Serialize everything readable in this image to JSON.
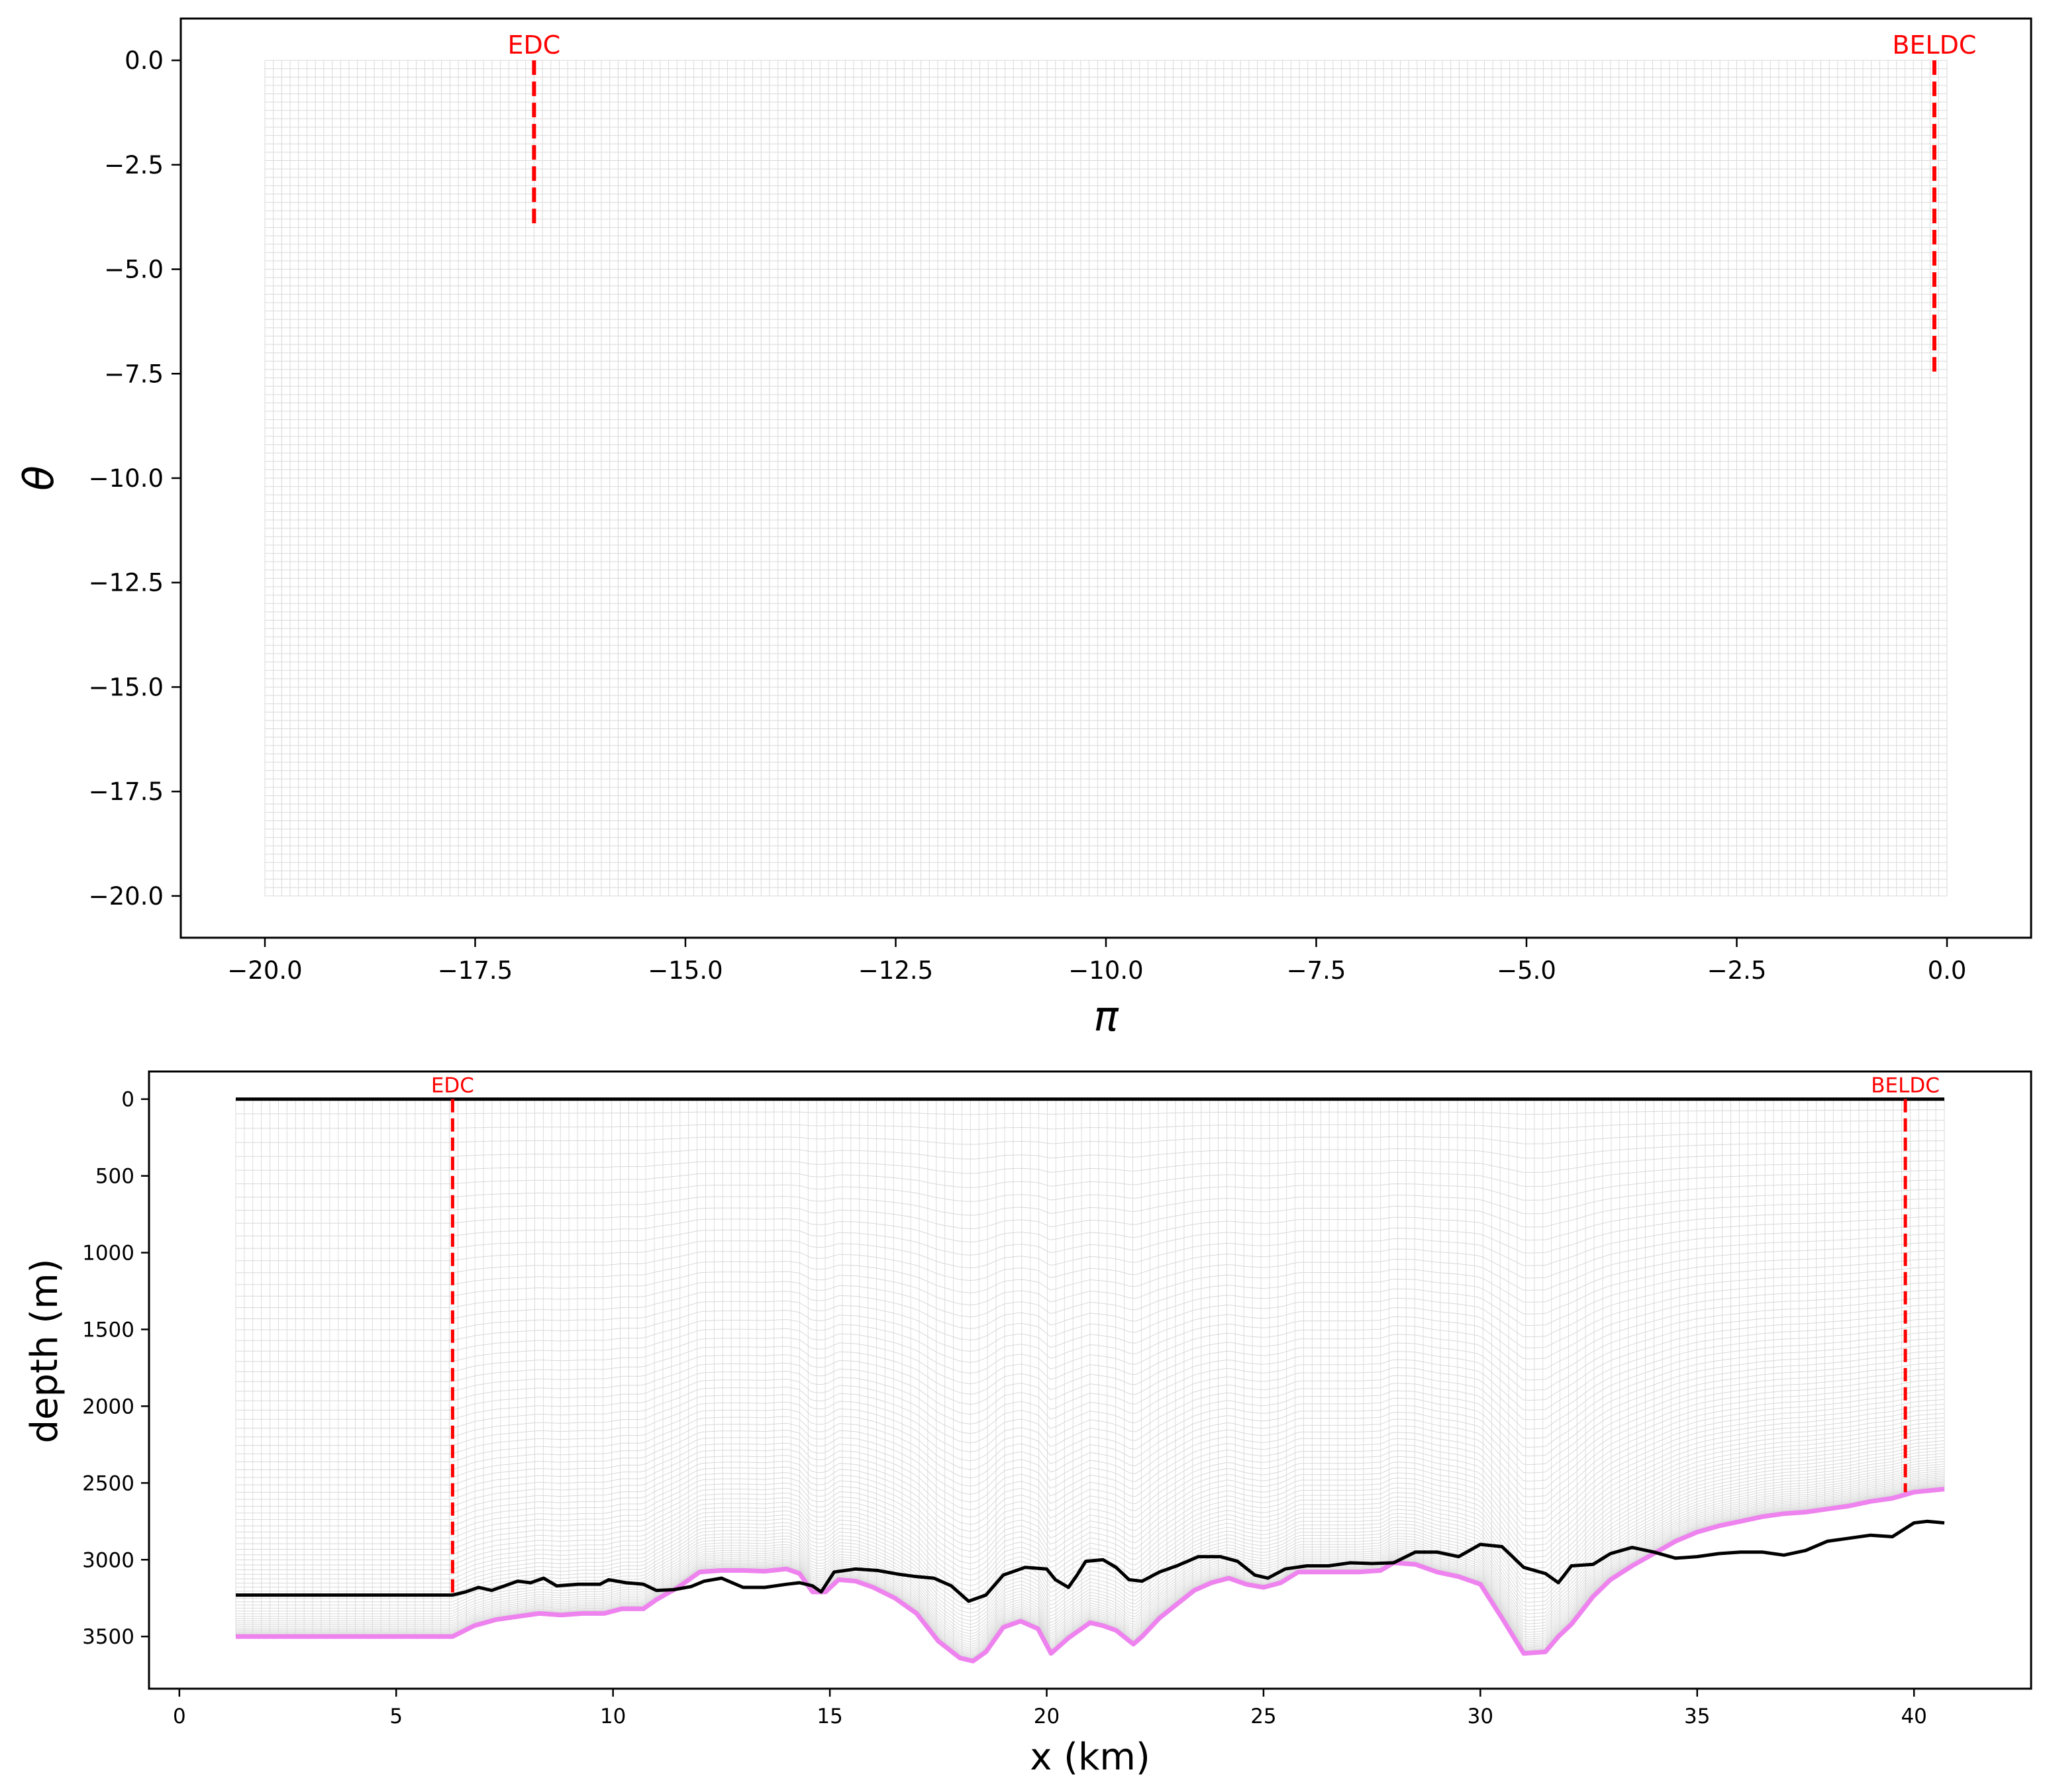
{
  "chart_data": [
    {
      "type": "line",
      "name": "top-panel",
      "xlabel": "π",
      "ylabel": "θ",
      "xlim": [
        -21.0,
        1.0
      ],
      "ylim": [
        -21.0,
        1.0
      ],
      "x_ticks": [
        -20.0,
        -17.5,
        -15.0,
        -12.5,
        -10.0,
        -7.5,
        -5.0,
        -2.5,
        0.0
      ],
      "x_tick_labels": [
        "−20.0",
        "−17.5",
        "−15.0",
        "−12.5",
        "−10.0",
        "−7.5",
        "−5.0",
        "−2.5",
        "0.0"
      ],
      "y_ticks": [
        0.0,
        -2.5,
        -5.0,
        -7.5,
        -10.0,
        -12.5,
        -15.0,
        -17.5,
        -20.0
      ],
      "y_tick_labels": [
        "0.0",
        "−2.5",
        "−5.0",
        "−7.5",
        "−10.0",
        "−12.5",
        "−15.0",
        "−17.5",
        "−20.0"
      ],
      "grid": {
        "x_range": [
          -20.0,
          0.0
        ],
        "y_range": [
          -20.0,
          0.0
        ],
        "color": "#d9d9d9"
      },
      "markers": [
        {
          "label": "EDC",
          "x": -16.8,
          "y_top": 0.0,
          "y_bottom": -4.0,
          "color": "#ff0000"
        },
        {
          "label": "BELDC",
          "x": -0.15,
          "y_top": 0.0,
          "y_bottom": -7.5,
          "color": "#ff0000"
        }
      ]
    },
    {
      "type": "line",
      "name": "bottom-panel",
      "xlabel": "x (km)",
      "ylabel": "depth (m)",
      "xlim": [
        -0.7,
        42.7
      ],
      "ylim": [
        3840,
        -180
      ],
      "x_ticks": [
        0,
        5,
        10,
        15,
        20,
        25,
        30,
        35,
        40
      ],
      "x_tick_labels": [
        "0",
        "5",
        "10",
        "15",
        "20",
        "25",
        "30",
        "35",
        "40"
      ],
      "y_ticks": [
        0,
        500,
        1000,
        1500,
        2000,
        2500,
        3000,
        3500
      ],
      "y_tick_labels": [
        "0",
        "500",
        "1000",
        "1500",
        "2000",
        "2500",
        "3000",
        "3500"
      ],
      "markers": [
        {
          "label": "EDC",
          "x": 6.3,
          "y_top": 0,
          "y_bottom": 3230,
          "color": "#ff0000"
        },
        {
          "label": "BELDC",
          "x": 39.8,
          "y_top": 0,
          "y_bottom": 2560,
          "color": "#ff0000"
        }
      ],
      "series": [
        {
          "role": "surface",
          "color": "#000000",
          "x": [
            1.3,
            40.7
          ],
          "y": [
            0,
            0
          ]
        },
        {
          "role": "black-profile",
          "color": "#000000",
          "x": [
            1.3,
            6.3,
            6.6,
            6.9,
            7.2,
            7.5,
            7.8,
            8.1,
            8.4,
            8.7,
            9.2,
            9.7,
            9.9,
            10.3,
            10.7,
            11.0,
            11.4,
            11.8,
            12.1,
            12.5,
            13.0,
            13.5,
            14.0,
            14.3,
            14.6,
            14.8,
            15.1,
            15.6,
            16.1,
            16.6,
            17.0,
            17.4,
            17.8,
            18.2,
            18.6,
            19.0,
            19.5,
            20.0,
            20.2,
            20.5,
            20.7,
            20.9,
            21.3,
            21.6,
            21.9,
            22.2,
            22.6,
            23.0,
            23.5,
            24.0,
            24.4,
            24.8,
            25.1,
            25.5,
            26.0,
            26.5,
            27.0,
            27.5,
            28.0,
            28.5,
            29.0,
            29.5,
            30.0,
            30.5,
            31.0,
            31.5,
            31.8,
            32.1,
            32.6,
            33.0,
            33.5,
            34.0,
            34.5,
            35.0,
            35.5,
            36.0,
            36.5,
            37.0,
            37.5,
            38.0,
            38.5,
            39.0,
            39.5,
            40.0,
            40.3,
            40.7
          ],
          "y": [
            3230,
            3230,
            3210,
            3180,
            3200,
            3170,
            3140,
            3150,
            3120,
            3170,
            3160,
            3160,
            3130,
            3150,
            3160,
            3200,
            3195,
            3175,
            3140,
            3120,
            3180,
            3180,
            3160,
            3150,
            3170,
            3210,
            3080,
            3060,
            3070,
            3095,
            3110,
            3120,
            3170,
            3270,
            3230,
            3100,
            3050,
            3060,
            3130,
            3180,
            3100,
            3010,
            3000,
            3050,
            3130,
            3140,
            3080,
            3040,
            2980,
            2980,
            3010,
            3100,
            3120,
            3060,
            3040,
            3040,
            3020,
            3025,
            3020,
            2950,
            2950,
            2980,
            2900,
            2915,
            3050,
            3090,
            3150,
            3040,
            3030,
            2960,
            2920,
            2950,
            2990,
            2980,
            2960,
            2950,
            2950,
            2970,
            2940,
            2880,
            2860,
            2840,
            2850,
            2760,
            2750,
            2760
          ]
        },
        {
          "role": "magenta-bed",
          "color": "#ee82ee",
          "x": [
            1.3,
            6.3,
            6.8,
            7.3,
            7.8,
            8.3,
            8.8,
            9.3,
            9.8,
            10.2,
            10.7,
            11.0,
            11.5,
            12.0,
            12.5,
            13.0,
            13.5,
            14.0,
            14.3,
            14.6,
            14.9,
            15.2,
            15.6,
            16.0,
            16.5,
            17.0,
            17.5,
            18.0,
            18.3,
            18.6,
            19.0,
            19.4,
            19.8,
            20.1,
            20.5,
            21.0,
            21.3,
            21.6,
            22.0,
            22.2,
            22.6,
            23.0,
            23.4,
            23.8,
            24.2,
            24.6,
            25.0,
            25.4,
            25.8,
            26.2,
            26.7,
            27.2,
            27.7,
            28.0,
            28.5,
            29.0,
            29.5,
            30.0,
            30.5,
            31.0,
            31.5,
            31.8,
            32.1,
            32.6,
            33.0,
            33.5,
            34.0,
            34.5,
            35.0,
            35.5,
            36.0,
            36.5,
            37.0,
            37.5,
            38.0,
            38.5,
            39.0,
            39.5,
            40.0,
            40.7
          ],
          "y": [
            3500,
            3500,
            3430,
            3390,
            3370,
            3350,
            3360,
            3350,
            3350,
            3320,
            3320,
            3260,
            3180,
            3080,
            3070,
            3070,
            3075,
            3060,
            3090,
            3210,
            3210,
            3130,
            3140,
            3180,
            3250,
            3350,
            3530,
            3640,
            3660,
            3600,
            3440,
            3400,
            3450,
            3610,
            3510,
            3410,
            3430,
            3460,
            3550,
            3500,
            3380,
            3290,
            3200,
            3150,
            3120,
            3160,
            3180,
            3150,
            3080,
            3080,
            3080,
            3080,
            3070,
            3020,
            3030,
            3080,
            3110,
            3160,
            3380,
            3610,
            3600,
            3500,
            3420,
            3240,
            3130,
            3040,
            2960,
            2880,
            2820,
            2780,
            2750,
            2720,
            2700,
            2690,
            2670,
            2650,
            2620,
            2600,
            2560,
            2540
          ]
        }
      ]
    }
  ]
}
